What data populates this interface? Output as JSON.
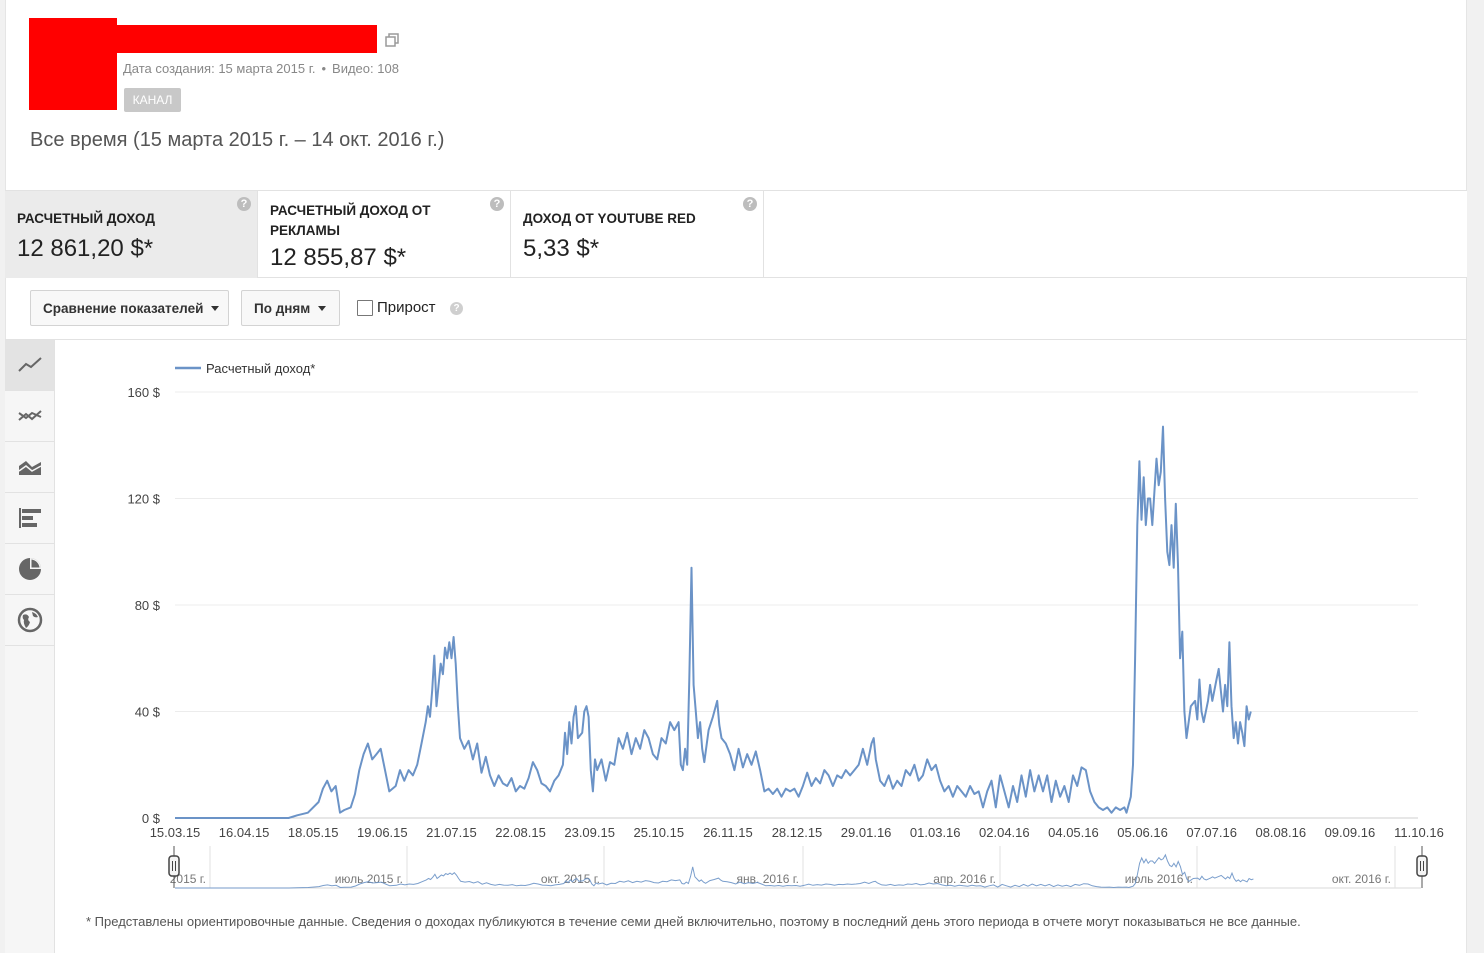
{
  "channel": {
    "created_label": "Дата создания: 15 марта 2015 г.",
    "videos_label": "Видео: 108",
    "badge": "КАНАЛ"
  },
  "period": "Все время (15 марта 2015 г. – 14 окт. 2016 г.)",
  "metrics": [
    {
      "label": "РАСЧЕТНЫЙ ДОХОД",
      "value": "12 861,20 $*",
      "active": true
    },
    {
      "label": "РАСЧЕТНЫЙ ДОХОД ОТ РЕКЛАМЫ",
      "value": "12 855,87 $*",
      "active": false
    },
    {
      "label": "ДОХОД ОТ YOUTUBE RED",
      "value": "5,33 $*",
      "active": false
    }
  ],
  "help_glyph": "?",
  "controls": {
    "compare_label": "Сравнение показателей",
    "granularity_label": "По дням",
    "growth_label": "Прирост"
  },
  "chart_types": [
    "line-chart-icon",
    "multi-line-chart-icon",
    "area-chart-icon",
    "bar-chart-icon",
    "pie-chart-icon",
    "globe-map-icon"
  ],
  "chart_data": {
    "type": "line",
    "series": [
      {
        "name": "Расчетный доход*",
        "color": "#6b93c7",
        "points": [
          [
            0,
            0
          ],
          [
            40,
            0
          ],
          [
            53,
            0
          ],
          [
            57,
            1
          ],
          [
            62,
            2
          ],
          [
            67,
            6
          ],
          [
            69,
            11
          ],
          [
            71,
            14
          ],
          [
            73,
            10
          ],
          [
            75,
            12
          ],
          [
            77,
            2
          ],
          [
            79,
            3
          ],
          [
            82,
            4
          ],
          [
            84,
            9
          ],
          [
            86,
            18
          ],
          [
            88,
            24
          ],
          [
            90,
            28
          ],
          [
            92,
            22
          ],
          [
            94,
            24
          ],
          [
            96,
            26
          ],
          [
            98,
            18
          ],
          [
            100,
            10
          ],
          [
            103,
            12
          ],
          [
            105,
            18
          ],
          [
            107,
            14
          ],
          [
            109,
            18
          ],
          [
            111,
            16
          ],
          [
            113,
            20
          ],
          [
            115,
            28
          ],
          [
            117,
            36
          ],
          [
            118,
            42
          ],
          [
            119,
            38
          ],
          [
            120,
            48
          ],
          [
            121,
            61
          ],
          [
            122,
            42
          ],
          [
            123,
            50
          ],
          [
            124,
            58
          ],
          [
            125,
            54
          ],
          [
            126,
            64
          ],
          [
            127,
            60
          ],
          [
            128,
            66
          ],
          [
            129,
            60
          ],
          [
            130,
            68
          ],
          [
            131,
            58
          ],
          [
            132,
            42
          ],
          [
            133,
            30
          ],
          [
            135,
            26
          ],
          [
            137,
            29
          ],
          [
            139,
            22
          ],
          [
            141,
            28
          ],
          [
            143,
            17
          ],
          [
            145,
            23
          ],
          [
            147,
            16
          ],
          [
            149,
            12
          ],
          [
            151,
            16
          ],
          [
            153,
            13
          ],
          [
            155,
            12
          ],
          [
            157,
            15
          ],
          [
            159,
            10
          ],
          [
            161,
            12
          ],
          [
            163,
            11
          ],
          [
            165,
            15
          ],
          [
            167,
            21
          ],
          [
            169,
            18
          ],
          [
            171,
            13
          ],
          [
            173,
            12
          ],
          [
            175,
            10
          ],
          [
            177,
            14
          ],
          [
            179,
            16
          ],
          [
            181,
            20
          ],
          [
            182,
            32
          ],
          [
            183,
            24
          ],
          [
            184,
            36
          ],
          [
            185,
            28
          ],
          [
            186,
            38
          ],
          [
            187,
            42
          ],
          [
            188,
            30
          ],
          [
            190,
            32
          ],
          [
            191,
            40
          ],
          [
            192,
            42
          ],
          [
            193,
            38
          ],
          [
            194,
            18
          ],
          [
            195,
            10
          ],
          [
            196,
            22
          ],
          [
            197,
            18
          ],
          [
            199,
            22
          ],
          [
            201,
            14
          ],
          [
            203,
            21
          ],
          [
            205,
            20
          ],
          [
            207,
            30
          ],
          [
            209,
            26
          ],
          [
            211,
            32
          ],
          [
            213,
            24
          ],
          [
            215,
            30
          ],
          [
            217,
            26
          ],
          [
            219,
            33
          ],
          [
            221,
            30
          ],
          [
            223,
            24
          ],
          [
            225,
            22
          ],
          [
            227,
            30
          ],
          [
            229,
            28
          ],
          [
            231,
            36
          ],
          [
            233,
            33
          ],
          [
            235,
            36
          ],
          [
            236,
            20
          ],
          [
            237,
            18
          ],
          [
            238,
            26
          ],
          [
            239,
            20
          ],
          [
            240,
            52
          ],
          [
            241,
            94
          ],
          [
            242,
            50
          ],
          [
            243,
            40
          ],
          [
            244,
            30
          ],
          [
            245,
            36
          ],
          [
            246,
            26
          ],
          [
            247,
            21
          ],
          [
            249,
            33
          ],
          [
            251,
            38
          ],
          [
            253,
            44
          ],
          [
            254,
            35
          ],
          [
            255,
            30
          ],
          [
            257,
            28
          ],
          [
            259,
            24
          ],
          [
            261,
            18
          ],
          [
            263,
            26
          ],
          [
            265,
            19
          ],
          [
            267,
            24
          ],
          [
            269,
            20
          ],
          [
            271,
            25
          ],
          [
            273,
            18
          ],
          [
            275,
            10
          ],
          [
            277,
            11
          ],
          [
            279,
            9
          ],
          [
            281,
            11
          ],
          [
            283,
            8
          ],
          [
            285,
            11
          ],
          [
            287,
            10
          ],
          [
            289,
            11
          ],
          [
            291,
            8
          ],
          [
            293,
            12
          ],
          [
            295,
            17
          ],
          [
            297,
            12
          ],
          [
            299,
            15
          ],
          [
            301,
            13
          ],
          [
            303,
            18
          ],
          [
            305,
            16
          ],
          [
            307,
            12
          ],
          [
            309,
            16
          ],
          [
            311,
            15
          ],
          [
            313,
            18
          ],
          [
            315,
            16
          ],
          [
            317,
            18
          ],
          [
            319,
            20
          ],
          [
            321,
            26
          ],
          [
            323,
            20
          ],
          [
            325,
            28
          ],
          [
            326,
            30
          ],
          [
            327,
            22
          ],
          [
            329,
            14
          ],
          [
            331,
            12
          ],
          [
            333,
            16
          ],
          [
            335,
            11
          ],
          [
            337,
            14
          ],
          [
            339,
            12
          ],
          [
            341,
            18
          ],
          [
            343,
            16
          ],
          [
            345,
            20
          ],
          [
            347,
            14
          ],
          [
            349,
            16
          ],
          [
            351,
            22
          ],
          [
            353,
            18
          ],
          [
            355,
            20
          ],
          [
            357,
            14
          ],
          [
            359,
            10
          ],
          [
            361,
            12
          ],
          [
            363,
            8
          ],
          [
            365,
            12
          ],
          [
            367,
            10
          ],
          [
            369,
            8
          ],
          [
            371,
            12
          ],
          [
            373,
            9
          ],
          [
            375,
            10
          ],
          [
            377,
            4
          ],
          [
            379,
            10
          ],
          [
            381,
            14
          ],
          [
            383,
            4
          ],
          [
            385,
            16
          ],
          [
            387,
            10
          ],
          [
            389,
            4
          ],
          [
            391,
            12
          ],
          [
            393,
            6
          ],
          [
            395,
            16
          ],
          [
            397,
            8
          ],
          [
            399,
            18
          ],
          [
            401,
            10
          ],
          [
            403,
            16
          ],
          [
            405,
            10
          ],
          [
            407,
            16
          ],
          [
            409,
            6
          ],
          [
            411,
            14
          ],
          [
            413,
            8
          ],
          [
            415,
            12
          ],
          [
            417,
            6
          ],
          [
            419,
            16
          ],
          [
            421,
            12
          ],
          [
            423,
            19
          ],
          [
            425,
            18
          ],
          [
            427,
            10
          ],
          [
            429,
            6
          ],
          [
            431,
            4
          ],
          [
            433,
            3
          ],
          [
            435,
            4
          ],
          [
            437,
            2
          ],
          [
            439,
            4
          ],
          [
            441,
            3
          ],
          [
            443,
            4
          ],
          [
            444,
            2
          ],
          [
            446,
            8
          ],
          [
            447,
            20
          ],
          [
            448,
            60
          ],
          [
            449,
            110
          ],
          [
            450,
            134
          ],
          [
            451,
            112
          ],
          [
            452,
            128
          ],
          [
            453,
            110
          ],
          [
            454,
            120
          ],
          [
            455,
            120
          ],
          [
            456,
            110
          ],
          [
            458,
            135
          ],
          [
            459,
            125
          ],
          [
            460,
            130
          ],
          [
            461,
            147
          ],
          [
            462,
            120
          ],
          [
            463,
            100
          ],
          [
            464,
            95
          ],
          [
            465,
            110
          ],
          [
            466,
            94
          ],
          [
            467,
            118
          ],
          [
            468,
            95
          ],
          [
            469,
            60
          ],
          [
            470,
            70
          ],
          [
            471,
            40
          ],
          [
            472,
            30
          ],
          [
            474,
            42
          ],
          [
            476,
            44
          ],
          [
            477,
            37
          ],
          [
            478,
            52
          ],
          [
            479,
            40
          ],
          [
            480,
            36
          ],
          [
            482,
            44
          ],
          [
            483,
            50
          ],
          [
            484,
            44
          ],
          [
            486,
            52
          ],
          [
            487,
            56
          ],
          [
            488,
            48
          ],
          [
            489,
            40
          ],
          [
            490,
            50
          ],
          [
            491,
            42
          ],
          [
            492,
            66
          ],
          [
            493,
            42
          ],
          [
            494,
            30
          ],
          [
            495,
            36
          ],
          [
            496,
            28
          ],
          [
            497,
            36
          ],
          [
            498,
            32
          ],
          [
            499,
            27
          ],
          [
            500,
            42
          ],
          [
            501,
            37
          ],
          [
            502,
            40
          ]
        ]
      }
    ],
    "x_ticks": [
      "15.03.15",
      "16.04.15",
      "18.05.15",
      "19.06.15",
      "21.07.15",
      "22.08.15",
      "23.09.15",
      "25.10.15",
      "26.11.15",
      "28.12.15",
      "29.01.16",
      "01.03.16",
      "02.04.16",
      "04.05.16",
      "05.06.16",
      "07.07.16",
      "08.08.16",
      "09.09.16",
      "11.10.16"
    ],
    "y_ticks": [
      "0 $",
      "40 $",
      "80 $",
      "120 $",
      "160 $"
    ],
    "y_tick_values": [
      0,
      40,
      80,
      120,
      160
    ],
    "ylim": [
      0,
      160
    ],
    "x_is_day_index": true,
    "x_range_days": [
      0,
      580
    ],
    "grid": true,
    "legend_position": "top-left",
    "navigator_labels": [
      "2015 г.",
      "июль 2015 г.",
      "окт. 2015 г.",
      "янв. 2016 г.",
      "апр. 2016 г.",
      "июль 2016 г.",
      "окт. 2016 г."
    ]
  },
  "footnote": "* Представлены ориентировочные данные. Сведения о доходах публикуются в течение семи дней включительно, поэтому в последний день этого периода в отчете могут показываться не все данные."
}
